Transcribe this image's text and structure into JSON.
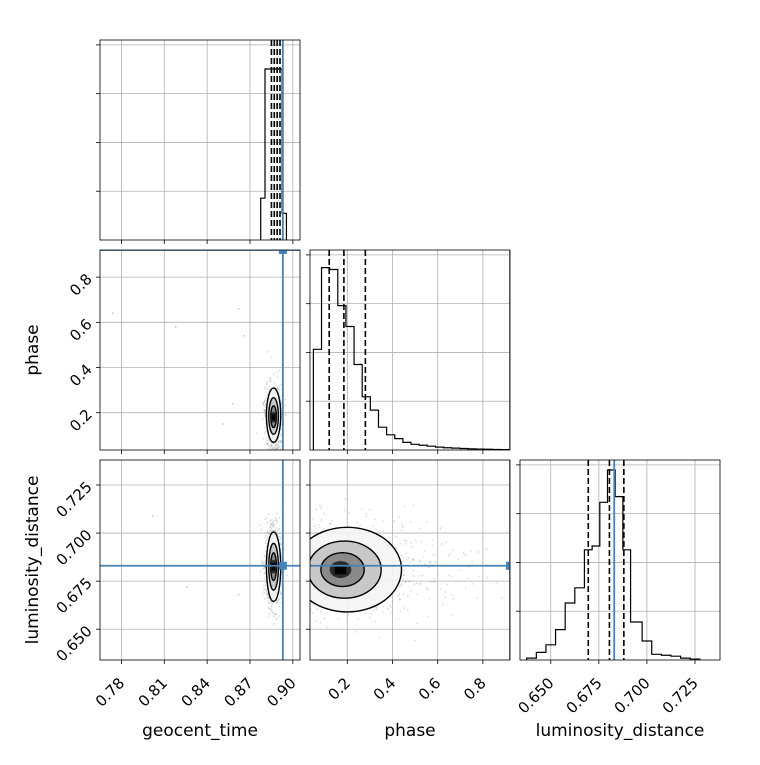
{
  "chart_data": {
    "type": "corner",
    "parameters": [
      "geocent_time",
      "phase",
      "luminosity_distance"
    ],
    "axis_labels": {
      "geocent_time": "geocent_time",
      "phase": "phase",
      "luminosity_distance": "luminosity_distance"
    },
    "ranges": {
      "geocent_time": [
        0.765,
        0.905
      ],
      "phase": [
        0.035,
        0.92
      ],
      "luminosity_distance": [
        0.634,
        0.738
      ]
    },
    "ticks": {
      "geocent_time": [
        {
          "value": 0.78,
          "label": "0.78"
        },
        {
          "value": 0.81,
          "label": "0.81"
        },
        {
          "value": 0.84,
          "label": "0.84"
        },
        {
          "value": 0.87,
          "label": "0.87"
        },
        {
          "value": 0.9,
          "label": "0.90"
        }
      ],
      "phase": [
        {
          "value": 0.2,
          "label": "0.2"
        },
        {
          "value": 0.4,
          "label": "0.4"
        },
        {
          "value": 0.6,
          "label": "0.6"
        },
        {
          "value": 0.8,
          "label": "0.8"
        }
      ],
      "luminosity_distance": [
        {
          "value": 0.65,
          "label": "0.650"
        },
        {
          "value": 0.675,
          "label": "0.675"
        },
        {
          "value": 0.7,
          "label": "0.700"
        },
        {
          "value": 0.725,
          "label": "0.725"
        }
      ]
    },
    "truths": {
      "geocent_time": 0.893,
      "phase": 0.92,
      "luminosity_distance": 0.683
    },
    "truth_color": "#4682b4",
    "hist_color": "#000000",
    "scatter_color": "#9e9e9e",
    "grid": true,
    "histograms": {
      "geocent_time": {
        "bin_edges": [
          0.8775,
          0.8805,
          0.8835,
          0.8865,
          0.8895,
          0.8925,
          0.8955
        ],
        "counts": [
          0.22,
          0.9,
          0.9,
          0.9,
          0.9,
          0.14
        ],
        "quantiles": [
          0.885,
          0.887,
          0.889,
          0.891
        ]
      },
      "phase": {
        "bin_edges": [
          0.05,
          0.086,
          0.122,
          0.158,
          0.194,
          0.23,
          0.266,
          0.302,
          0.338,
          0.374,
          0.41,
          0.446,
          0.482,
          0.518,
          0.554,
          0.59,
          0.626,
          0.662,
          0.698,
          0.734,
          0.77,
          0.806,
          0.842,
          0.878,
          0.914
        ],
        "counts": [
          0.53,
          0.96,
          0.95,
          0.76,
          0.65,
          0.45,
          0.28,
          0.21,
          0.12,
          0.08,
          0.06,
          0.04,
          0.03,
          0.025,
          0.02,
          0.015,
          0.012,
          0.01,
          0.008,
          0.006,
          0.005,
          0.004,
          0.003,
          0.002
        ],
        "quantiles": [
          0.12,
          0.185,
          0.28
        ]
      },
      "luminosity_distance": {
        "bin_edges": [
          0.6375,
          0.6425,
          0.6475,
          0.6525,
          0.6575,
          0.6625,
          0.6675,
          0.6715,
          0.6755,
          0.6795,
          0.6835,
          0.6875,
          0.6915,
          0.6975,
          0.7025,
          0.7075,
          0.7125,
          0.7175,
          0.7225,
          0.7275
        ],
        "counts": [
          0.01,
          0.04,
          0.08,
          0.16,
          0.3,
          0.38,
          0.58,
          0.6,
          0.83,
          1.0,
          0.86,
          0.58,
          0.2,
          0.1,
          0.03,
          0.025,
          0.02,
          0.01,
          0.005
        ],
        "quantiles": [
          0.6695,
          0.6805,
          0.688
        ]
      }
    },
    "density_2d": [
      {
        "x": "geocent_time",
        "y": "phase",
        "center": [
          0.8865,
          0.18
        ],
        "spread": [
          0.0025,
          0.06
        ],
        "stray_points": [
          [
            0.774,
            0.64
          ],
          [
            0.818,
            0.58
          ],
          [
            0.862,
            0.66
          ],
          [
            0.858,
            0.24
          ],
          [
            0.866,
            0.54
          ],
          [
            0.851,
            0.15
          ]
        ]
      },
      {
        "x": "geocent_time",
        "y": "luminosity_distance",
        "center": [
          0.8865,
          0.6825
        ],
        "spread": [
          0.0025,
          0.009
        ],
        "stray_points": [
          [
            0.802,
            0.709
          ],
          [
            0.826,
            0.672
          ],
          [
            0.862,
            0.668
          ]
        ]
      },
      {
        "x": "phase",
        "y": "luminosity_distance",
        "center": [
          0.17,
          0.681
        ],
        "spread": [
          0.12,
          0.011
        ],
        "stray_points": []
      }
    ]
  }
}
